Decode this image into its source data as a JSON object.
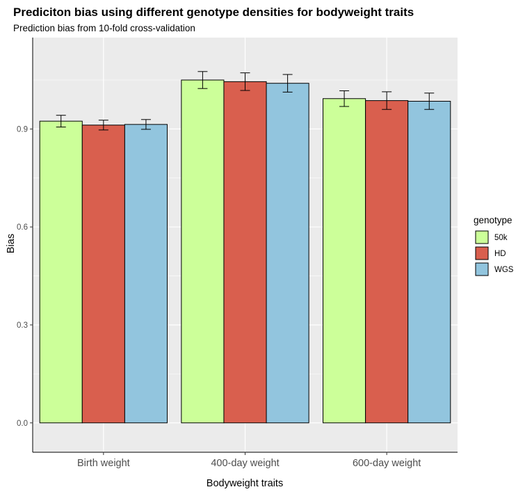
{
  "chart_data": {
    "type": "bar",
    "title": "Prediciton bias using different genotype densities for bodyweight traits",
    "subtitle": "Prediction bias from 10-fold cross-validation",
    "xlabel": "Bodyweight traits",
    "ylabel": "Bias",
    "categories": [
      "Birth weight",
      "400-day weight",
      "600-day weight"
    ],
    "ylim": [
      -0.09,
      1.18
    ],
    "yticks": [
      0.0,
      0.3,
      0.6,
      0.9
    ],
    "ytick_labels": [
      "0.0",
      "0.3",
      "0.6",
      "0.9"
    ],
    "legend_title": "genotype",
    "legend_position": "right",
    "series": [
      {
        "name": "50k",
        "color": "#ccff99",
        "values": [
          0.924,
          1.05,
          0.993
        ],
        "errors": [
          0.018,
          0.026,
          0.024
        ]
      },
      {
        "name": "HD",
        "color": "#d95f4e",
        "values": [
          0.912,
          1.045,
          0.987
        ],
        "errors": [
          0.015,
          0.027,
          0.027
        ]
      },
      {
        "name": "WGS",
        "color": "#92c5de",
        "values": [
          0.914,
          1.04,
          0.985
        ],
        "errors": [
          0.015,
          0.027,
          0.025
        ]
      }
    ]
  }
}
